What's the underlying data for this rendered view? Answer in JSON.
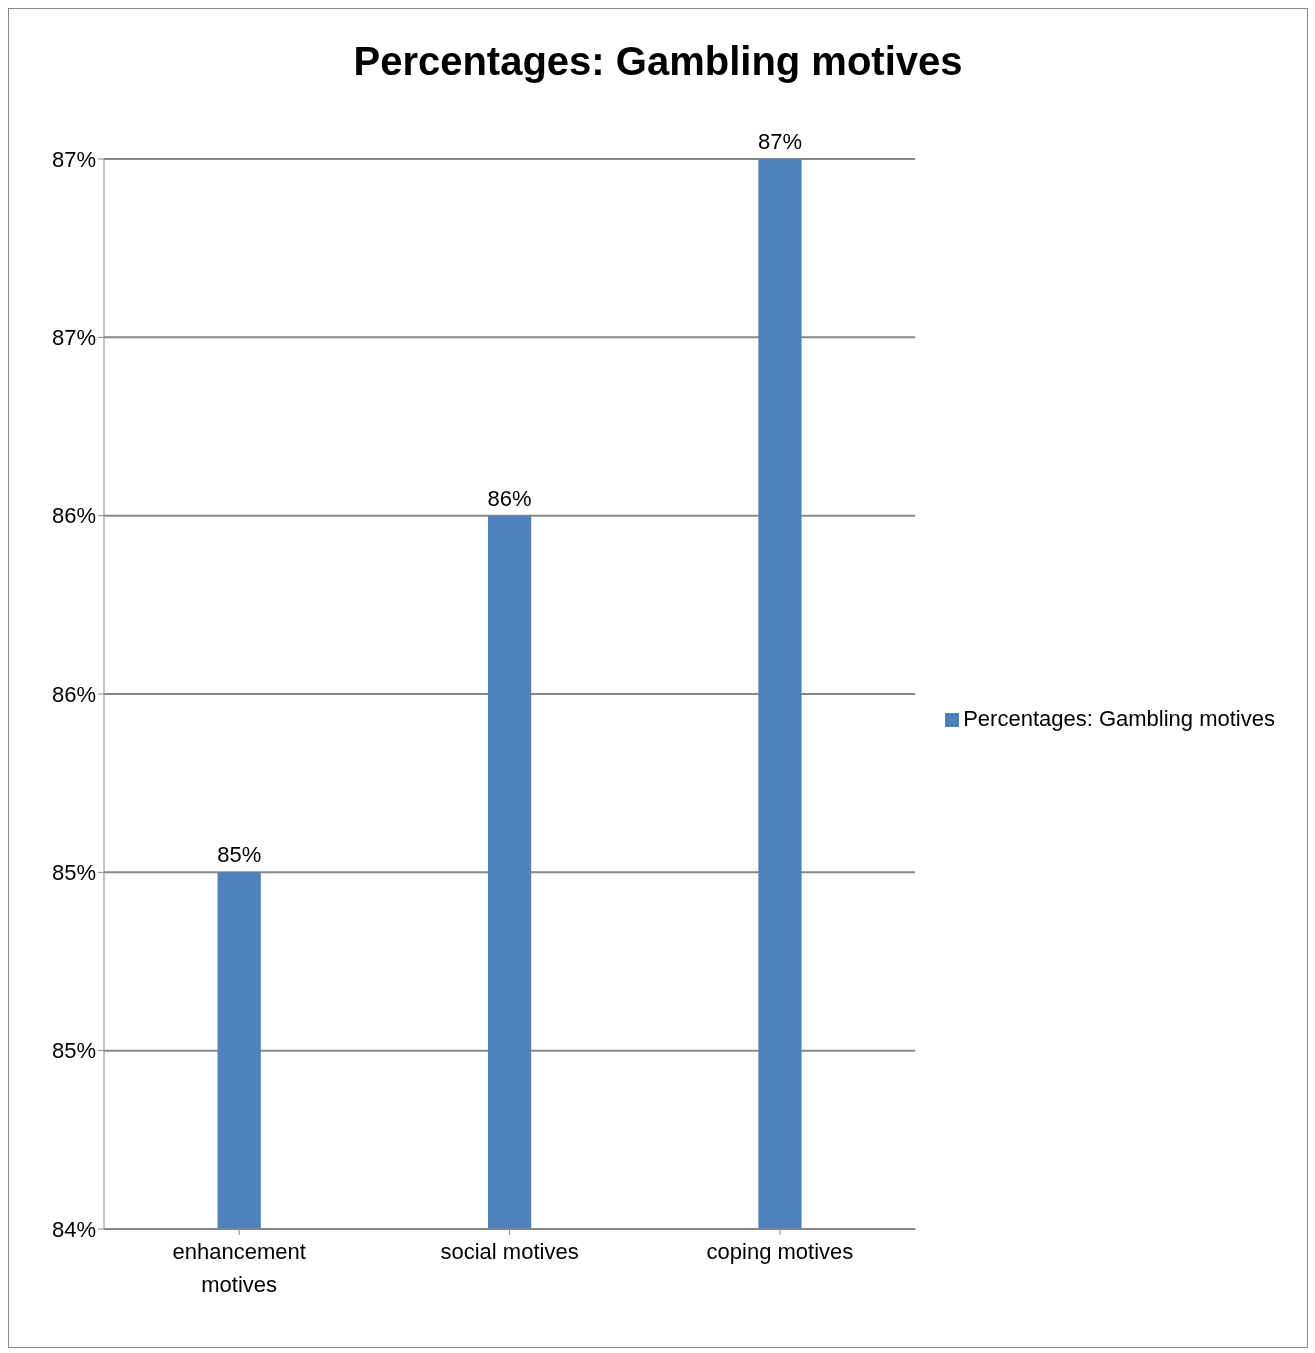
{
  "chart_data": {
    "type": "bar",
    "title": "Percentages: Gambling motives",
    "categories": [
      "enhancement motives",
      "social motives",
      "coping motives"
    ],
    "series": [
      {
        "name": "Percentages: Gambling motives",
        "color": "#4f81bd",
        "values": [
          85,
          86,
          87
        ],
        "value_labels": [
          "85%",
          "86%",
          "87%"
        ]
      }
    ],
    "ylim": [
      84,
      87
    ],
    "yticks": [
      {
        "value": 84,
        "label": "84%"
      },
      {
        "value": 84.5,
        "label": "85%"
      },
      {
        "value": 85,
        "label": "85%"
      },
      {
        "value": 85.5,
        "label": "86%"
      },
      {
        "value": 86,
        "label": "86%"
      },
      {
        "value": 86.5,
        "label": "87%"
      },
      {
        "value": 87,
        "label": "87%"
      }
    ],
    "grid": "y",
    "legend": "right"
  }
}
